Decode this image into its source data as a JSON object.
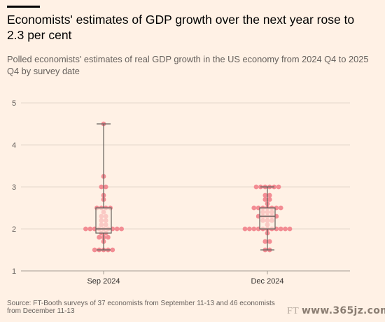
{
  "title": "Economists' estimates of GDP growth over the next year rose to 2.3 per cent",
  "subtitle": "Polled economists' estimates of real GDP growth in the US economy from 2024 Q4 to 2025 Q4 by survey date",
  "source": "Source: FT-Booth surveys of 37 economists from September 11-13 and 46 economists from December 11-13",
  "watermark": {
    "left": "FT",
    "right": "www.365jz.com"
  },
  "colors": {
    "background": "#FFF1E5",
    "dot": "#F2828B",
    "box": "#66605C",
    "grid": "#E3D6CA"
  },
  "chart_data": {
    "type": "box-swarm",
    "title": "Economists' estimates of GDP growth over the next year rose to 2.3 per cent",
    "ylim": [
      1,
      5
    ],
    "yticks": [
      1,
      2,
      3,
      4,
      5
    ],
    "categories": [
      "Sep 2024",
      "Dec 2024"
    ],
    "boxes": [
      {
        "category": "Sep 2024",
        "min": 1.5,
        "q1": 1.9,
        "median": 2.0,
        "q3": 2.5,
        "max": 4.5
      },
      {
        "category": "Dec 2024",
        "min": 1.5,
        "q1": 2.0,
        "median": 2.3,
        "q3": 2.5,
        "max": 3.0
      }
    ],
    "points": [
      {
        "category": "Sep 2024",
        "values": [
          4.5,
          3.25,
          3.0,
          3.0,
          2.8,
          2.7,
          2.5,
          2.5,
          2.5,
          2.5,
          2.4,
          2.3,
          2.3,
          2.2,
          2.2,
          2.1,
          2.1,
          2.0,
          2.0,
          2.0,
          2.0,
          2.0,
          2.0,
          2.0,
          2.0,
          2.0,
          1.9,
          1.9,
          1.8,
          1.8,
          1.8,
          1.7,
          1.5,
          1.5,
          1.5,
          1.5,
          1.5
        ]
      },
      {
        "category": "Dec 2024",
        "values": [
          3.0,
          3.0,
          3.0,
          3.0,
          3.0,
          3.0,
          2.8,
          2.8,
          2.7,
          2.7,
          2.6,
          2.5,
          2.5,
          2.5,
          2.5,
          2.5,
          2.5,
          2.5,
          2.4,
          2.4,
          2.4,
          2.3,
          2.3,
          2.3,
          2.3,
          2.3,
          2.2,
          2.2,
          2.2,
          2.1,
          2.0,
          2.0,
          2.0,
          2.0,
          2.0,
          2.0,
          2.0,
          2.0,
          2.0,
          2.0,
          2.0,
          1.9,
          1.7,
          1.7,
          1.5,
          1.5
        ]
      }
    ]
  }
}
